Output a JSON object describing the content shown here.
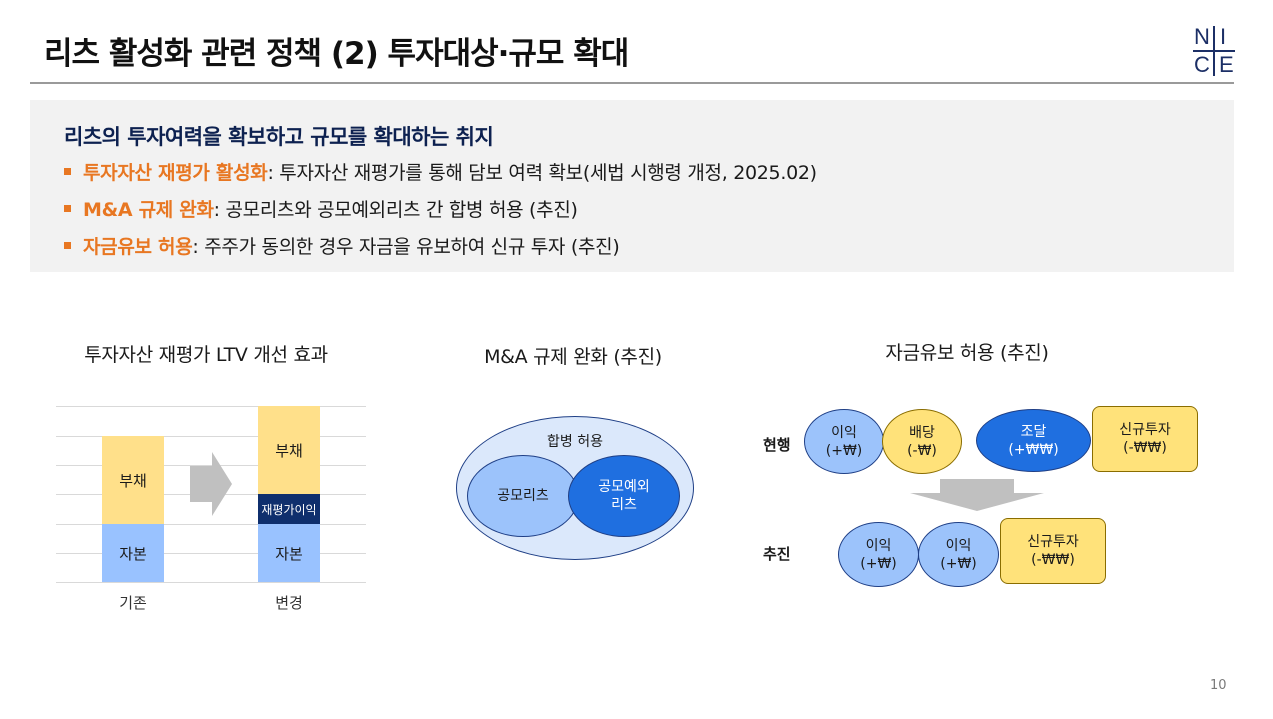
{
  "title": "리츠 활성화 관련 정책 (2) 투자대상·규모 확대",
  "logo": {
    "letters": [
      "N",
      "I",
      "C",
      "E"
    ]
  },
  "summary": {
    "heading": "리츠의 투자여력을 확보하고 규모를 확대하는 취지",
    "bullets": [
      {
        "highlight": "투자자산 재평가 활성화",
        "text": ": 투자자산 재평가를 통해 담보 여력 확보(세법 시행령 개정, 2025.02)"
      },
      {
        "highlight": "M&A 규제 완화",
        "text": ": 공모리츠와 공모예외리츠 간 합병 허용 (추진)"
      },
      {
        "highlight": "자금유보 허용",
        "text": ": 주주가 동의한 경우 자금을 유보하여 신규 투자 (추진)"
      }
    ]
  },
  "ltv_panel": {
    "title": "투자자산 재평가 LTV 개선 효과",
    "before": {
      "label": "기존",
      "equity": "자본",
      "debt": "부채"
    },
    "after": {
      "label": "변경",
      "equity": "자본",
      "revaluation": "재평가이익",
      "debt": "부채"
    }
  },
  "mna_panel": {
    "title": "M&A 규제 완화 (추진)",
    "outer_label": "합병 허용",
    "left_label": "공모리츠",
    "right_label": "공모예외\n리츠"
  },
  "reserve_panel": {
    "title": "자금유보 허용 (추진)",
    "current_label": "현행",
    "proposed_label": "추진",
    "current": {
      "profit": "이익\n(+₩)",
      "dividend": "배당\n(-₩)",
      "funding": "조달\n(+₩₩)",
      "new_invest": "신규투자\n(-₩₩)"
    },
    "proposed": {
      "profit1": "이익\n(+₩)",
      "profit2": "이익\n(+₩)",
      "new_invest": "신규투자\n(-₩₩)"
    }
  },
  "page_number": "10",
  "colors": {
    "navy": "#0d2150",
    "accent": "#e87722",
    "light_blue": "#99c2ff",
    "blue": "#1f6fe0",
    "yellow": "#ffe27a",
    "dark_navy_bar": "#0f2f6d"
  }
}
